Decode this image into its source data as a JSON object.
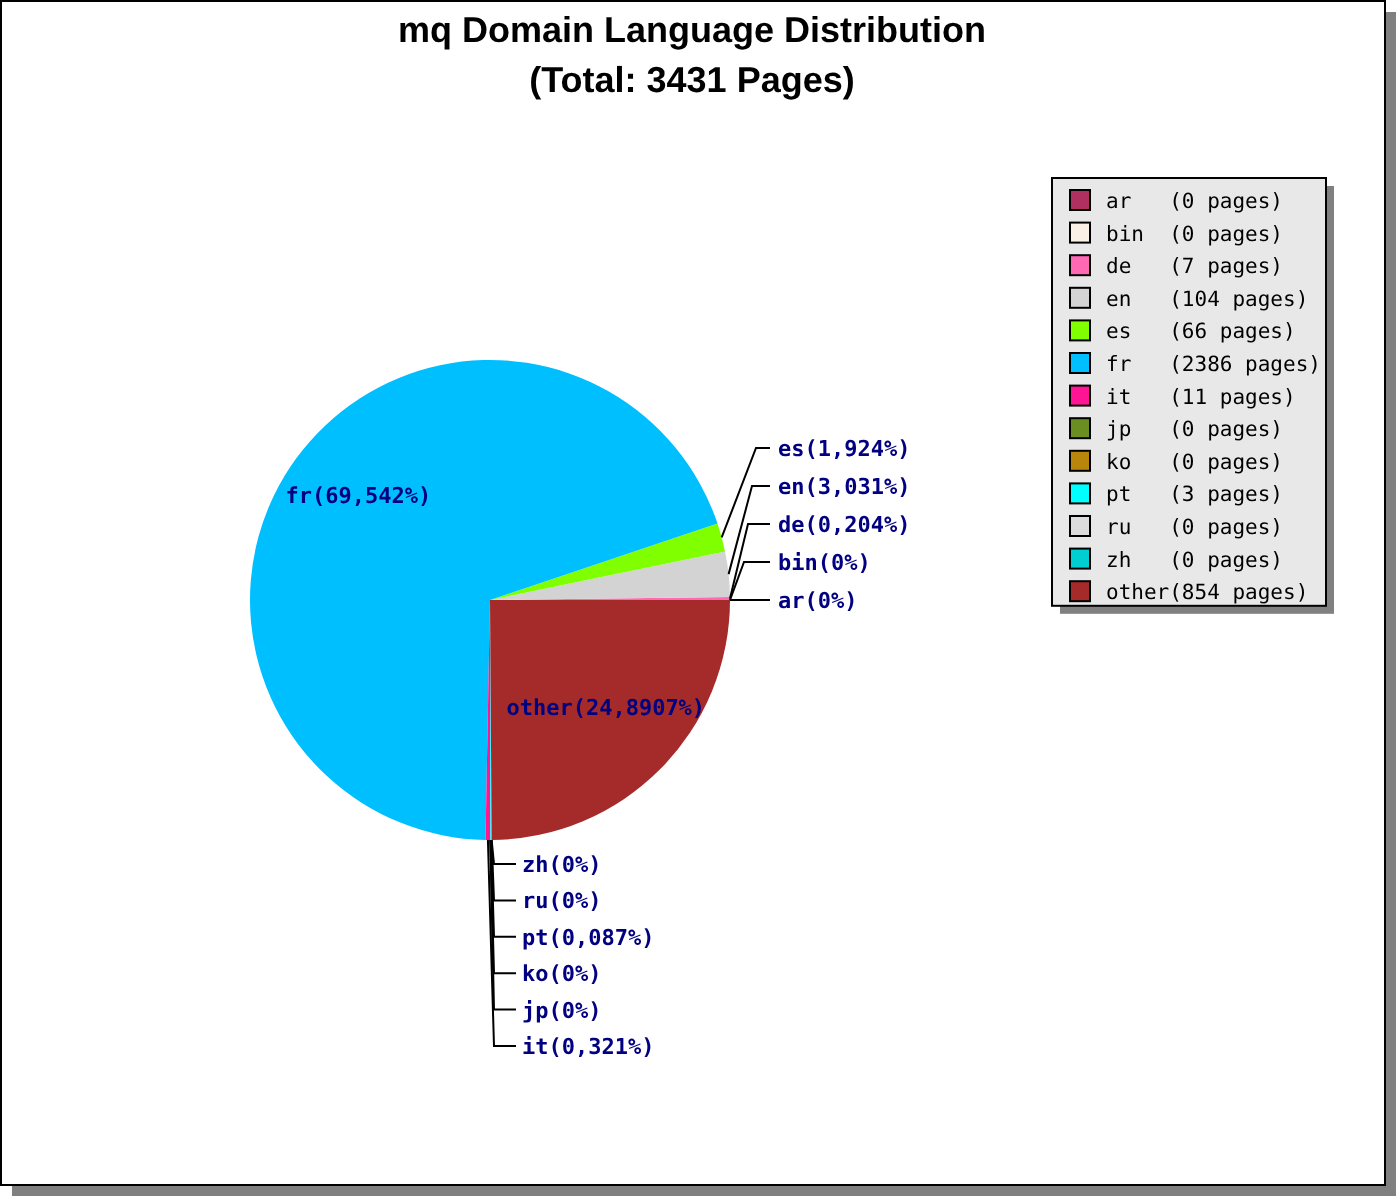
{
  "chart_data": {
    "type": "pie",
    "title": "mq Domain Language Distribution",
    "subtitle": "(Total: 3431 Pages)",
    "categories": [
      "ar   (0 pages)",
      "bin  (0 pages)",
      "de   (7 pages)",
      "en   (104 pages)",
      "es   (66 pages)",
      "fr   (2386 pages)",
      "it   (11 pages)",
      "jp   (0 pages)",
      "ko   (0 pages)",
      "pt   (3 pages)",
      "ru   (0 pages)",
      "zh   (0 pages)",
      "other(854 pages)"
    ],
    "values": [
      0,
      0,
      7,
      104,
      66,
      2386,
      11,
      0,
      0,
      3,
      0,
      0,
      854
    ],
    "value_labels": [
      "ar(0%)",
      "bin(0%)",
      "de(0,204%)",
      "en(3,031%)",
      "es(1,924%)",
      "fr(69,542%)",
      "it(0,321%)",
      "jp(0%)",
      "ko(0%)",
      "pt(0,087%)",
      "ru(0%)",
      "zh(0%)",
      "other(24,8907%)"
    ],
    "colors": [
      "#b03060",
      "#faf0e6",
      "#ff69b4",
      "#d3d3d3",
      "#7fff00",
      "#00bfff",
      "#ff1493",
      "#6b8e23",
      "#b8860b",
      "#00ffff",
      "#dcdcdc",
      "#00ced1",
      "#a52a2a"
    ],
    "legend": "top right"
  }
}
